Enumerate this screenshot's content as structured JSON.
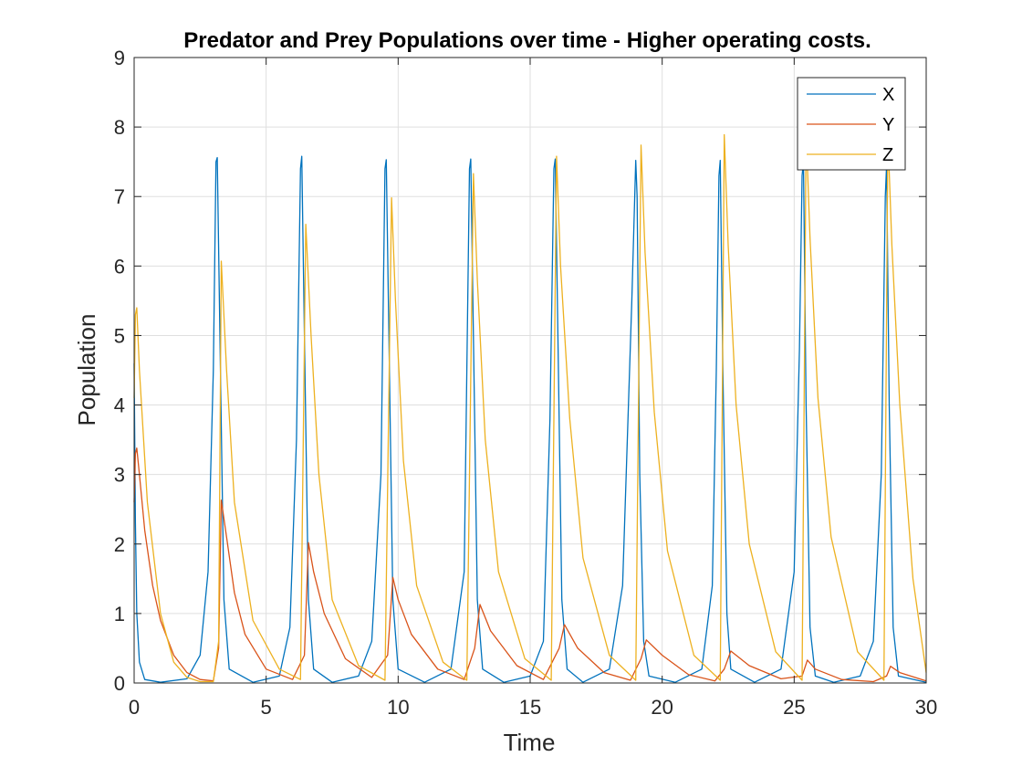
{
  "chart_data": {
    "type": "line",
    "title": "Predator and Prey Populations over time - Higher operating costs.",
    "xlabel": "Time",
    "ylabel": "Population",
    "xlim": [
      0,
      30
    ],
    "ylim": [
      0,
      9
    ],
    "xticks": [
      0,
      5,
      10,
      15,
      20,
      25,
      30
    ],
    "yticks": [
      0,
      1,
      2,
      3,
      4,
      5,
      6,
      7,
      8,
      9
    ],
    "grid": true,
    "legend_position": "top-right",
    "series": [
      {
        "name": "X",
        "color": "#0072BD",
        "x": [
          0,
          0.05,
          0.1,
          0.2,
          0.4,
          1.0,
          2.0,
          2.5,
          2.8,
          3.0,
          3.1,
          3.15,
          3.25,
          3.4,
          3.6,
          4.5,
          5.5,
          5.9,
          6.15,
          6.3,
          6.35,
          6.45,
          6.6,
          6.8,
          7.5,
          8.5,
          9.0,
          9.35,
          9.5,
          9.55,
          9.65,
          9.8,
          10.0,
          11.0,
          12.0,
          12.5,
          12.6,
          12.7,
          12.75,
          12.85,
          13.0,
          13.2,
          14.0,
          15.0,
          15.5,
          15.75,
          15.9,
          15.95,
          16.05,
          16.2,
          16.4,
          17.0,
          18.0,
          18.5,
          18.85,
          19.0,
          19.05,
          19.15,
          19.3,
          19.5,
          20.5,
          21.5,
          21.9,
          22.05,
          22.15,
          22.2,
          22.3,
          22.45,
          22.6,
          23.5,
          24.5,
          25.0,
          25.2,
          25.3,
          25.35,
          25.45,
          25.6,
          25.8,
          26.5,
          27.5,
          28.0,
          28.3,
          28.45,
          28.5,
          28.6,
          28.75,
          28.95,
          30.0
        ],
        "y": [
          4.6,
          2.3,
          1.0,
          0.3,
          0.05,
          0.01,
          0.06,
          0.4,
          1.6,
          4.5,
          7.5,
          7.56,
          5.0,
          1.2,
          0.2,
          0.01,
          0.1,
          0.8,
          3.5,
          7.4,
          7.58,
          5.0,
          1.2,
          0.2,
          0.01,
          0.1,
          0.6,
          3.0,
          7.4,
          7.53,
          5.0,
          1.2,
          0.2,
          0.01,
          0.2,
          1.6,
          4.5,
          7.4,
          7.54,
          5.0,
          1.2,
          0.2,
          0.01,
          0.1,
          0.6,
          3.8,
          7.4,
          7.54,
          5.0,
          1.2,
          0.2,
          0.01,
          0.2,
          1.4,
          5.5,
          7.52,
          7.0,
          3.0,
          0.6,
          0.1,
          0.01,
          0.2,
          1.4,
          4.5,
          7.3,
          7.52,
          4.5,
          1.0,
          0.2,
          0.01,
          0.2,
          1.6,
          4.8,
          7.3,
          7.5,
          4.0,
          0.8,
          0.1,
          0.01,
          0.1,
          0.6,
          3.0,
          7.0,
          7.45,
          4.0,
          0.8,
          0.1,
          0.01
        ]
      },
      {
        "name": "Y",
        "color": "#D95319",
        "x": [
          0,
          0.05,
          0.1,
          0.2,
          0.4,
          0.7,
          1.0,
          1.5,
          2.0,
          2.5,
          3.0,
          3.2,
          3.3,
          3.5,
          3.8,
          4.2,
          5.0,
          6.0,
          6.45,
          6.6,
          6.8,
          7.2,
          8.0,
          9.0,
          9.6,
          9.8,
          10.0,
          10.5,
          11.5,
          12.5,
          12.9,
          13.1,
          13.5,
          14.5,
          15.5,
          16.1,
          16.3,
          16.8,
          17.8,
          18.8,
          19.2,
          19.4,
          20.0,
          21.0,
          22.0,
          22.35,
          22.6,
          23.3,
          24.5,
          25.3,
          25.5,
          25.8,
          26.8,
          28.0,
          28.5,
          28.65,
          29.0,
          30.0
        ],
        "y": [
          2.6,
          3.3,
          3.38,
          3.0,
          2.2,
          1.4,
          0.9,
          0.4,
          0.15,
          0.05,
          0.03,
          0.5,
          2.63,
          2.1,
          1.3,
          0.7,
          0.2,
          0.05,
          0.4,
          2.02,
          1.6,
          1.0,
          0.35,
          0.08,
          0.4,
          1.52,
          1.2,
          0.7,
          0.2,
          0.05,
          0.5,
          1.13,
          0.75,
          0.25,
          0.05,
          0.5,
          0.84,
          0.5,
          0.15,
          0.04,
          0.35,
          0.62,
          0.4,
          0.12,
          0.03,
          0.2,
          0.46,
          0.25,
          0.06,
          0.1,
          0.33,
          0.2,
          0.05,
          0.02,
          0.1,
          0.24,
          0.15,
          0.03
        ]
      },
      {
        "name": "Z",
        "color": "#EDB120",
        "x": [
          0,
          0.05,
          0.1,
          0.2,
          0.5,
          1.0,
          1.5,
          2.0,
          2.5,
          3.0,
          3.2,
          3.3,
          3.5,
          3.8,
          4.5,
          5.5,
          6.3,
          6.5,
          6.7,
          7.0,
          7.5,
          8.5,
          9.5,
          9.75,
          9.9,
          10.2,
          10.7,
          11.7,
          12.6,
          12.85,
          13.0,
          13.3,
          13.8,
          14.8,
          15.8,
          16.0,
          16.15,
          16.5,
          17.0,
          18.0,
          19.0,
          19.2,
          19.35,
          19.7,
          20.2,
          21.2,
          22.2,
          22.35,
          22.5,
          22.8,
          23.3,
          24.3,
          25.3,
          25.45,
          25.6,
          25.9,
          26.4,
          27.4,
          28.4,
          28.55,
          28.7,
          29.0,
          29.5,
          30.0
        ],
        "y": [
          4.1,
          5.3,
          5.4,
          4.5,
          2.6,
          1.0,
          0.3,
          0.08,
          0.02,
          0.02,
          0.6,
          6.07,
          4.5,
          2.6,
          0.9,
          0.2,
          0.05,
          6.6,
          5.0,
          3.0,
          1.2,
          0.25,
          0.04,
          6.98,
          5.5,
          3.2,
          1.4,
          0.3,
          0.04,
          7.33,
          5.8,
          3.5,
          1.6,
          0.35,
          0.04,
          7.58,
          6.0,
          3.8,
          1.8,
          0.4,
          0.04,
          7.74,
          6.2,
          3.9,
          1.9,
          0.4,
          0.04,
          7.89,
          6.3,
          4.0,
          2.0,
          0.45,
          0.04,
          7.95,
          6.4,
          4.1,
          2.1,
          0.45,
          0.04,
          7.9,
          6.3,
          4.0,
          1.5,
          0.15
        ]
      }
    ]
  }
}
